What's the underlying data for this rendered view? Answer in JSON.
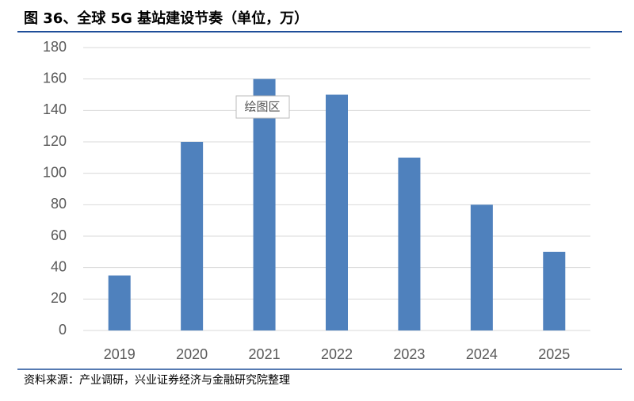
{
  "chart_data": {
    "type": "bar",
    "title": "图 36、全球 5G 基站建设节奏（单位，万）",
    "categories": [
      "2019",
      "2020",
      "2021",
      "2022",
      "2023",
      "2024",
      "2025"
    ],
    "values": [
      35,
      120,
      160,
      150,
      110,
      80,
      50
    ],
    "color": "#4f81bd",
    "ylim": [
      0,
      180
    ],
    "yticks": [
      0,
      20,
      40,
      60,
      80,
      100,
      120,
      140,
      160,
      180
    ],
    "grid": true,
    "annotation": "绘图区",
    "source": "资料来源：产业调研，兴业证券经济与金融研究院整理"
  }
}
